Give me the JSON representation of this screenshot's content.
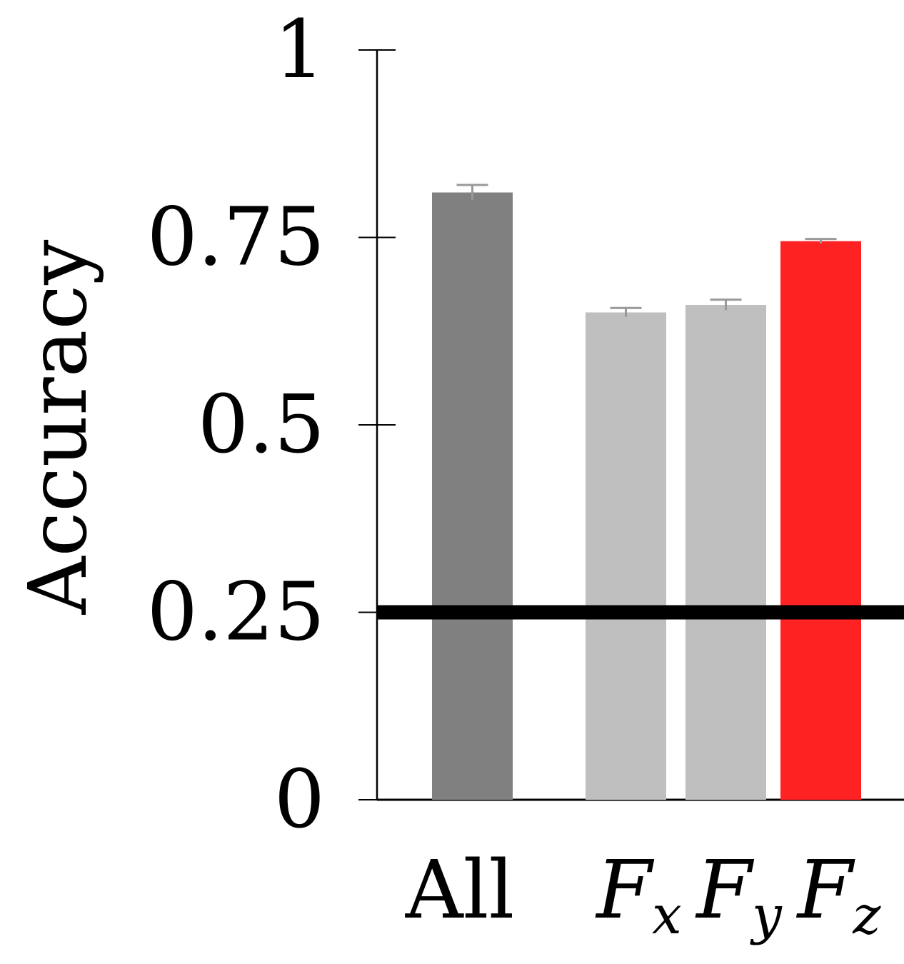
{
  "chart_data": {
    "type": "bar",
    "title": "",
    "xlabel": "",
    "ylabel": "Accuracy",
    "ylim": [
      0,
      1
    ],
    "yticks": [
      {
        "value": 0,
        "label": "0"
      },
      {
        "value": 0.25,
        "label": "0.25"
      },
      {
        "value": 0.5,
        "label": "0.5"
      },
      {
        "value": 0.75,
        "label": "0.75"
      },
      {
        "value": 1,
        "label": "1"
      }
    ],
    "categories": [
      {
        "id": "all",
        "label": "All",
        "main": "All",
        "sub": ""
      },
      {
        "id": "fx",
        "label": "Fx",
        "main": "F",
        "sub": "x"
      },
      {
        "id": "fy",
        "label": "Fy",
        "main": "F",
        "sub": "y"
      },
      {
        "id": "fz",
        "label": "Fz",
        "main": "F",
        "sub": "z"
      }
    ],
    "values": [
      0.81,
      0.65,
      0.66,
      0.745
    ],
    "errors": [
      0.01,
      0.006,
      0.007,
      0.003
    ],
    "colors": [
      "#808080",
      "#bfbfbf",
      "#bfbfbf",
      "#ff2222"
    ],
    "error_color": "#999999",
    "reference_line": {
      "value": 0.25,
      "color": "#000000"
    },
    "grid": false,
    "legend": "none"
  }
}
